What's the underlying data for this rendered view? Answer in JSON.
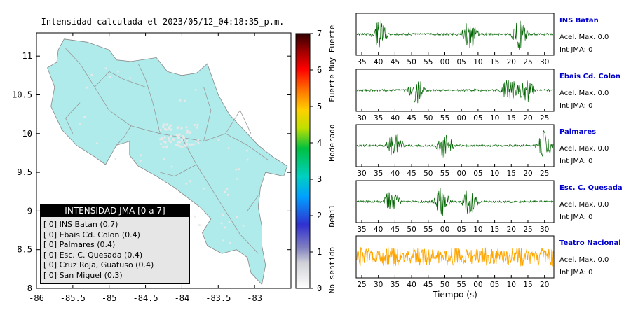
{
  "map": {
    "title": "Intensidad calculada el 2023/05/12_04:18:35_p.m.",
    "x_ticks": [
      "-86",
      "-85.5",
      "-85",
      "-84.5",
      "-84",
      "-83.5",
      "-83"
    ],
    "y_ticks": [
      "11",
      "10.5",
      "10",
      "9.5",
      "9",
      "8.5",
      "8"
    ],
    "xlim": [
      -86,
      -82.5
    ],
    "ylim": [
      8,
      11.3
    ],
    "land_color": "#b0ebeb",
    "sea_color": "#ffffff"
  },
  "colorbar": {
    "ticks": [
      "0",
      "1",
      "2",
      "3",
      "4",
      "5",
      "6",
      "7"
    ],
    "labels": [
      "No sentido",
      "Debil",
      "Moderado",
      "Fuerte",
      "Muy Fuerte"
    ],
    "range": [
      0,
      7
    ]
  },
  "legend": {
    "title": "INTENSIDAD JMA [0 a 7]",
    "items": [
      "[ 0] INS Batan (0.7)",
      "[ 0] Ebais Cd. Colon (0.4)",
      "[ 0] Palmares (0.4)",
      "[ 0] Esc. C. Quesada (0.4)",
      "[ 0] Cruz Roja, Guatuso (0.4)",
      "[ 0] San Miguel (0.3)"
    ]
  },
  "chart_data": [
    {
      "type": "line",
      "title": "INS Batan",
      "x_ticks": [
        "35",
        "40",
        "45",
        "50",
        "55",
        "00",
        "05",
        "10",
        "15",
        "20",
        "25",
        "30"
      ],
      "annotations": [
        "Acel. Max. 0.0",
        "Int JMA: 0"
      ],
      "color": "#006400",
      "burst_tick_positions": [
        1.1,
        6.5,
        9.5
      ]
    },
    {
      "type": "line",
      "title": "Ebais Cd. Colon",
      "x_ticks": [
        "30",
        "35",
        "40",
        "45",
        "50",
        "55",
        "00",
        "05",
        "10",
        "15",
        "20",
        "25"
      ],
      "annotations": [
        "Acel. Max. 0.0",
        "Int JMA: 0"
      ],
      "color": "#006400",
      "burst_tick_positions": [
        3.3,
        8.9,
        9.9
      ]
    },
    {
      "type": "line",
      "title": "Palmares",
      "x_ticks": [
        "30",
        "35",
        "40",
        "45",
        "50",
        "55",
        "00",
        "05",
        "10",
        "15",
        "20",
        "25"
      ],
      "annotations": [
        "Acel. Max. 0.0",
        "Int JMA: 0"
      ],
      "color": "#006400",
      "burst_tick_positions": [
        2.0,
        5.0,
        11.0
      ]
    },
    {
      "type": "line",
      "title": "Esc. C. Quesada",
      "x_ticks": [
        "35",
        "40",
        "45",
        "50",
        "55",
        "00",
        "05",
        "10",
        "15",
        "20",
        "25",
        "30"
      ],
      "annotations": [
        "Acel. Max. 0.0",
        "Int JMA: 0"
      ],
      "color": "#006400",
      "burst_tick_positions": [
        1.8,
        4.8,
        6.5
      ]
    },
    {
      "type": "line",
      "title": "Teatro Nacional",
      "x_ticks": [
        "25",
        "30",
        "35",
        "40",
        "45",
        "50",
        "55",
        "00",
        "05",
        "10",
        "15",
        "20"
      ],
      "annotations": [
        "Acel. Max. 0.0",
        "Int JMA: 0"
      ],
      "xlabel": "Tiempo (s)",
      "color": "#ffa500",
      "burst_tick_positions": []
    }
  ]
}
